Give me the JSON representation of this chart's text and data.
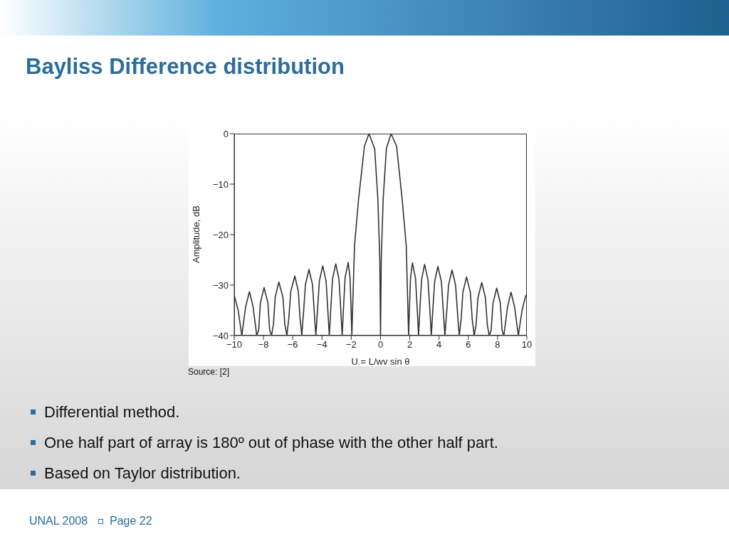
{
  "chart_data": {
    "type": "line",
    "title": "Bayliss Difference distribution",
    "xlabel": "U = L/wv sin θ",
    "ylabel": "Amplitude, dB",
    "marker": "none",
    "line_style": "solid",
    "x": [
      -10,
      -9.73,
      -9.48,
      -9.22,
      -8.96,
      -8.71,
      -8.46,
      -8.33,
      -8.21,
      -7.96,
      -7.7,
      -7.58,
      -7.45,
      -7.32,
      -7.2,
      -6.95,
      -6.67,
      -6.54,
      -6.4,
      -6.27,
      -6.13,
      -5.86,
      -5.62,
      -5.5,
      -5.38,
      -5.26,
      -5.13,
      -4.89,
      -4.65,
      -4.53,
      -4.42,
      -4.3,
      -4.18,
      -3.95,
      -3.72,
      -3.61,
      -3.5,
      -3.39,
      -3.28,
      -3.06,
      -2.84,
      -2.73,
      -2.62,
      -2.52,
      -2.42,
      -2.21,
      -2.085,
      -2.02,
      -1.96,
      -1.78,
      -1.5,
      -1.1,
      -0.79,
      -0.4,
      -0.18,
      -0.05,
      0,
      0.05,
      0.18,
      0.4,
      0.72,
      1.1,
      1.48,
      1.76,
      1.92,
      1.985,
      2.05,
      2.18,
      2.39,
      2.495,
      2.6,
      2.7,
      2.81,
      3.01,
      3.24,
      3.36,
      3.47,
      3.58,
      3.7,
      3.92,
      4.16,
      4.28,
      4.4,
      4.52,
      4.65,
      4.89,
      5.13,
      5.26,
      5.38,
      5.51,
      5.63,
      5.88,
      6.14,
      6.27,
      6.4,
      6.53,
      6.66,
      6.92,
      7.17,
      7.3,
      7.43,
      7.56,
      7.69,
      7.94,
      8.19,
      8.31,
      8.43,
      8.68,
      8.92,
      9.17,
      9.42,
      9.67,
      9.92,
      10
    ],
    "series": [
      {
        "color": "#333333",
        "values": [
          -32,
          -35,
          -40,
          -34.3,
          -31.3,
          -34.3,
          -40,
          -38.9,
          -33.5,
          -30.5,
          -33.5,
          -38.9,
          -40,
          -37.8,
          -32.4,
          -29.4,
          -32.4,
          -37.8,
          -40,
          -36.6,
          -31.2,
          -28.2,
          -31.2,
          -36.6,
          -40,
          -35.3,
          -29.9,
          -26.9,
          -29.9,
          -35.3,
          -40,
          -34.6,
          -29.2,
          -26.2,
          -29.2,
          -34.6,
          -40,
          -34.2,
          -28.8,
          -25.8,
          -28.8,
          -34.2,
          -40,
          -33.9,
          -28.5,
          -25.5,
          -28.5,
          -33.9,
          -40,
          -22.3,
          -13,
          -2.5,
          0,
          -3,
          -13,
          -25,
          -40,
          -25,
          -13,
          -3,
          0,
          -2.5,
          -13,
          -22.3,
          -40,
          -34,
          -28.6,
          -25.6,
          -28.6,
          -34,
          -40,
          -34.3,
          -28.9,
          -25.9,
          -28.9,
          -34.3,
          -40,
          -34.7,
          -29.3,
          -26.3,
          -29.3,
          -34.7,
          -40,
          -35.4,
          -30,
          -27,
          -30,
          -35.4,
          -40,
          -36.8,
          -31.4,
          -28.4,
          -31.4,
          -36.8,
          -40,
          -37.9,
          -32.5,
          -29.5,
          -32.5,
          -37.9,
          -40,
          -39,
          -33.6,
          -30.6,
          -33.6,
          -39,
          -40,
          -34.4,
          -31.4,
          -34.4,
          -40,
          -35.1,
          -32.1,
          -32.2
        ]
      }
    ],
    "xlim": [
      -10,
      10
    ],
    "ylim": [
      -40,
      0
    ],
    "xticks": [
      -10,
      -8,
      -6,
      -4,
      -2,
      0,
      2,
      4,
      6,
      8,
      10
    ],
    "yticks": [
      -40,
      -30,
      -20,
      -10,
      0
    ],
    "annotations": [
      "Source: [2]",
      "Differential method.",
      "One half part of array is 180º out of phase with the other half part.",
      "Based on Taylor distribution.",
      "UNAL 2008",
      "Page 22"
    ]
  }
}
